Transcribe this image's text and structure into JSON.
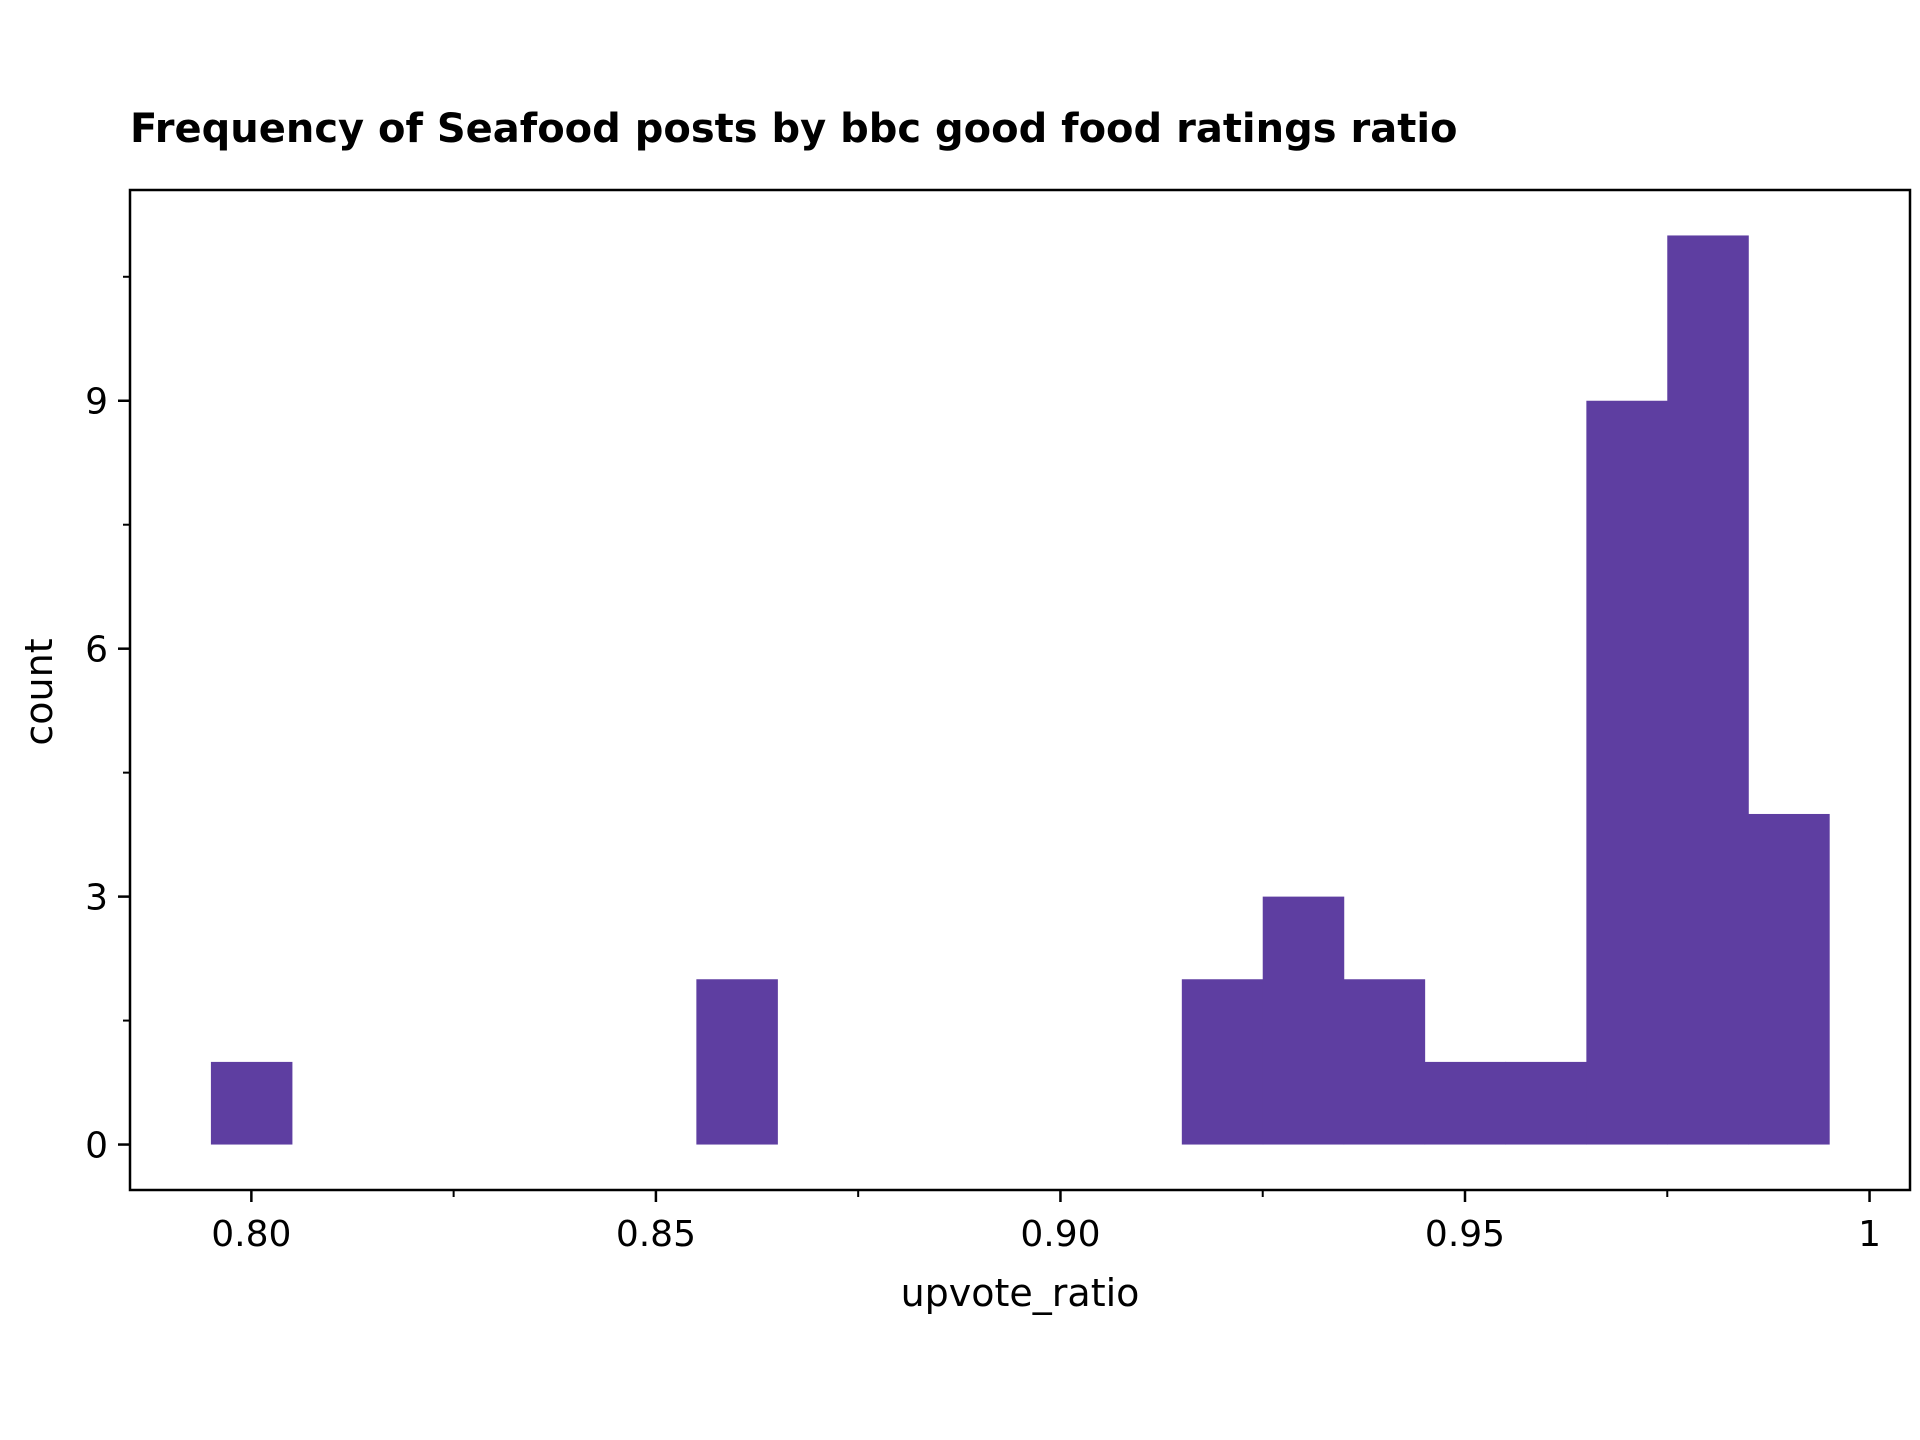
{
  "chart_data": {
    "type": "bar",
    "title": "Frequency of Seafood posts by bbc good food ratings ratio",
    "xlabel": "upvote_ratio",
    "ylabel": "count",
    "bar_color": "#5e3ea1",
    "bin_width": 0.01,
    "bins": [
      {
        "x0": 0.795,
        "x1": 0.805,
        "count": 1
      },
      {
        "x0": 0.855,
        "x1": 0.865,
        "count": 2
      },
      {
        "x0": 0.915,
        "x1": 0.925,
        "count": 2
      },
      {
        "x0": 0.925,
        "x1": 0.935,
        "count": 3
      },
      {
        "x0": 0.935,
        "x1": 0.945,
        "count": 2
      },
      {
        "x0": 0.945,
        "x1": 0.955,
        "count": 1
      },
      {
        "x0": 0.955,
        "x1": 0.965,
        "count": 1
      },
      {
        "x0": 0.965,
        "x1": 0.975,
        "count": 9
      },
      {
        "x0": 0.975,
        "x1": 0.985,
        "count": 11
      },
      {
        "x0": 0.985,
        "x1": 0.995,
        "count": 4
      }
    ],
    "xlim": [
      0.785,
      1.005
    ],
    "ylim": [
      -0.55,
      11.55
    ],
    "x_ticks": [
      {
        "value": 0.8,
        "label": "0.80"
      },
      {
        "value": 0.85,
        "label": "0.85"
      },
      {
        "value": 0.9,
        "label": "0.90"
      },
      {
        "value": 0.95,
        "label": "0.95"
      },
      {
        "value": 1.0,
        "label": "1"
      }
    ],
    "x_minor_ticks": [
      0.825,
      0.875,
      0.925,
      0.975
    ],
    "y_ticks": [
      {
        "value": 0,
        "label": "0"
      },
      {
        "value": 3,
        "label": "3"
      },
      {
        "value": 6,
        "label": "6"
      },
      {
        "value": 9,
        "label": "9"
      }
    ],
    "y_minor_ticks": [
      1.5,
      4.5,
      7.5,
      10.5
    ],
    "grid": false,
    "legend": "none"
  }
}
